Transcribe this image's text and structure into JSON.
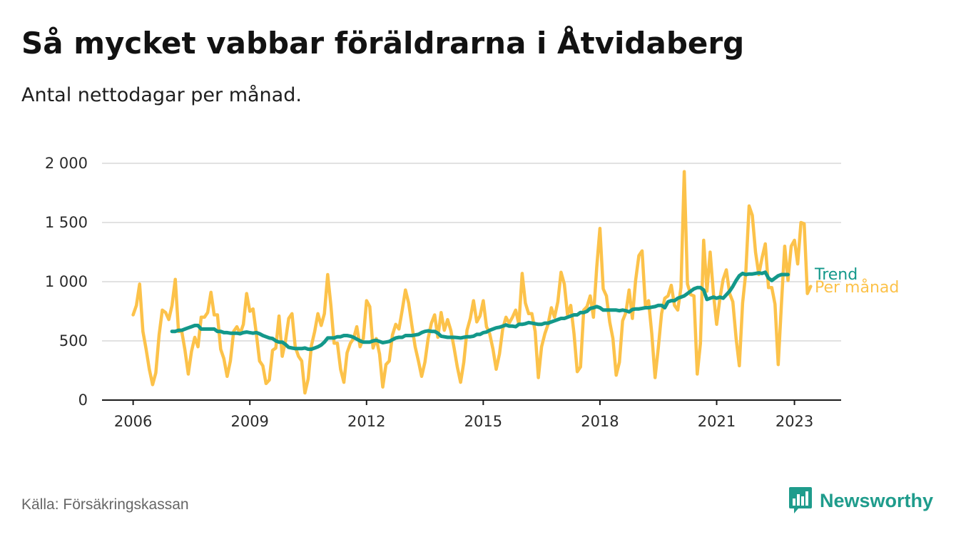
{
  "title": "Så mycket vabbar föräldrarna i Åtvidaberg",
  "subtitle": "Antal nettodagar per månad.",
  "source": "Källa: Försäkringskassan",
  "brand": {
    "name": "Newsworthy",
    "icon": "newsworthy-logo-icon",
    "color": "#1f9c8c"
  },
  "chart_data": {
    "type": "line",
    "title": "Så mycket vabbar föräldrarna i Åtvidaberg",
    "subtitle": "Antal nettodagar per månad.",
    "xlabel": "",
    "ylabel": "",
    "x_ticks": [
      2006,
      2009,
      2012,
      2015,
      2018,
      2021,
      2023
    ],
    "xlim": [
      2005.2,
      2024.2
    ],
    "ylim": [
      0,
      2000
    ],
    "y_ticks": [
      {
        "value": 0,
        "label": "0"
      },
      {
        "value": 500,
        "label": "500"
      },
      {
        "value": 1000,
        "label": "1 000"
      },
      {
        "value": 1500,
        "label": "1 500"
      },
      {
        "value": 2000,
        "label": "2 000"
      }
    ],
    "grid": "horizontal",
    "legend": "end-of-line labels",
    "series": [
      {
        "name": "Per månad",
        "color": "#fcc24a",
        "start": "2006-01",
        "values": [
          720,
          800,
          980,
          580,
          430,
          260,
          130,
          230,
          550,
          760,
          740,
          680,
          800,
          1020,
          580,
          580,
          420,
          220,
          410,
          530,
          450,
          700,
          700,
          740,
          910,
          720,
          720,
          430,
          350,
          200,
          330,
          580,
          620,
          560,
          640,
          900,
          750,
          770,
          560,
          330,
          290,
          140,
          170,
          420,
          440,
          710,
          370,
          500,
          690,
          730,
          450,
          370,
          330,
          60,
          180,
          460,
          580,
          730,
          630,
          730,
          1060,
          800,
          480,
          480,
          260,
          150,
          400,
          480,
          520,
          620,
          450,
          520,
          840,
          790,
          440,
          520,
          390,
          110,
          300,
          330,
          550,
          640,
          600,
          760,
          930,
          820,
          630,
          450,
          330,
          200,
          320,
          520,
          650,
          720,
          530,
          740,
          590,
          680,
          590,
          440,
          280,
          150,
          320,
          590,
          690,
          840,
          660,
          710,
          840,
          620,
          560,
          430,
          260,
          390,
          600,
          700,
          650,
          700,
          760,
          640,
          1070,
          820,
          730,
          730,
          580,
          190,
          450,
          560,
          640,
          780,
          700,
          830,
          1080,
          980,
          720,
          800,
          560,
          240,
          280,
          760,
          790,
          880,
          700,
          1120,
          1450,
          940,
          880,
          660,
          520,
          210,
          320,
          670,
          740,
          930,
          690,
          1010,
          1220,
          1260,
          800,
          840,
          560,
          190,
          440,
          730,
          860,
          880,
          970,
          800,
          760,
          950,
          1930,
          980,
          890,
          880,
          220,
          480,
          1350,
          920,
          1250,
          900,
          640,
          860,
          1020,
          1100,
          900,
          830,
          520,
          290,
          820,
          1080,
          1640,
          1560,
          1250,
          1060,
          1200,
          1320,
          950,
          950,
          810,
          300,
          820,
          1300,
          1010,
          1300,
          1350,
          1150,
          1500,
          1490,
          900,
          960
        ]
      },
      {
        "name": "Trend",
        "color": "#13988a",
        "start": "2007-01",
        "values": [
          580,
          580,
          590,
          590,
          600,
          610,
          620,
          630,
          630,
          600,
          600,
          600,
          600,
          600,
          580,
          580,
          570,
          570,
          565,
          565,
          565,
          560,
          570,
          575,
          570,
          565,
          570,
          560,
          545,
          535,
          525,
          520,
          500,
          490,
          490,
          470,
          445,
          440,
          435,
          435,
          435,
          440,
          430,
          430,
          440,
          450,
          465,
          490,
          525,
          525,
          525,
          535,
          535,
          545,
          545,
          540,
          530,
          515,
          500,
          490,
          490,
          490,
          500,
          505,
          495,
          485,
          490,
          495,
          510,
          525,
          530,
          530,
          545,
          545,
          545,
          550,
          555,
          570,
          580,
          585,
          580,
          580,
          565,
          540,
          535,
          530,
          530,
          530,
          528,
          525,
          530,
          535,
          535,
          540,
          555,
          555,
          570,
          575,
          590,
          600,
          610,
          615,
          625,
          635,
          625,
          625,
          620,
          640,
          640,
          645,
          655,
          650,
          645,
          640,
          640,
          650,
          650,
          660,
          670,
          680,
          690,
          690,
          700,
          710,
          720,
          720,
          740,
          740,
          750,
          775,
          780,
          790,
          780,
          760,
          760,
          760,
          760,
          760,
          755,
          760,
          755,
          745,
          765,
          770,
          770,
          775,
          780,
          780,
          785,
          790,
          800,
          800,
          780,
          830,
          840,
          840,
          860,
          870,
          880,
          900,
          920,
          940,
          950,
          950,
          930,
          850,
          860,
          870,
          860,
          870,
          860,
          890,
          920,
          960,
          1010,
          1050,
          1070,
          1060,
          1065,
          1065,
          1070,
          1075,
          1070,
          1080,
          1030,
          1010,
          1030,
          1050,
          1060,
          1060,
          1060
        ]
      }
    ]
  }
}
